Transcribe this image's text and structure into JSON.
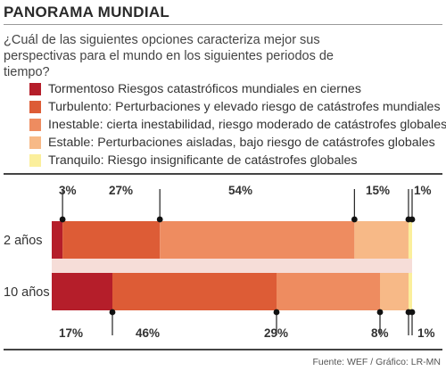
{
  "header": {
    "title": "PANORAMA MUNDIAL",
    "question": "¿Cuál de las siguientes opciones caracteriza mejor sus perspectivas para el mundo en los siguientes periodos de tiempo?"
  },
  "legend": [
    {
      "label": "Tormentoso Riesgos catastróficos mundiales en ciernes",
      "color": "#b51e2a"
    },
    {
      "label": "Turbulento: Perturbaciones y elevado riesgo de catástrofes mundiales",
      "color": "#dd5c36"
    },
    {
      "label": "Inestable: cierta inestabilidad, riesgo moderado de catástrofes globales",
      "color": "#ee8c60"
    },
    {
      "label": "Estable: Perturbaciones aisladas, bajo riesgo de catástrofes globales",
      "color": "#f7b987"
    },
    {
      "label": "Tranquilo: Riesgo insignificante de catástrofes globales",
      "color": "#fbef9c"
    }
  ],
  "source": "Fuente: WEF / Gráfico: LR-MN",
  "chart_data": {
    "type": "bar",
    "orientation": "horizontal",
    "stacked": true,
    "categories": [
      "2 años",
      "10 años"
    ],
    "series": [
      {
        "name": "Tormentoso",
        "values": [
          3,
          17
        ],
        "color": "#b51e2a"
      },
      {
        "name": "Turbulento",
        "values": [
          27,
          46
        ],
        "color": "#dd5c36"
      },
      {
        "name": "Inestable",
        "values": [
          54,
          29
        ],
        "color": "#ee8c60"
      },
      {
        "name": "Estable",
        "values": [
          15,
          8
        ],
        "color": "#f7b987"
      },
      {
        "name": "Tranquilo",
        "values": [
          1,
          1
        ],
        "color": "#fbef9c"
      }
    ],
    "top_labels": [
      "3%",
      "27%",
      "54%",
      "15%",
      "1%"
    ],
    "bottom_labels": [
      "17%",
      "46%",
      "29%",
      "8%",
      "1%"
    ],
    "connector_color": "#f6ddd8",
    "legend_position": "top-left",
    "grid": false
  }
}
